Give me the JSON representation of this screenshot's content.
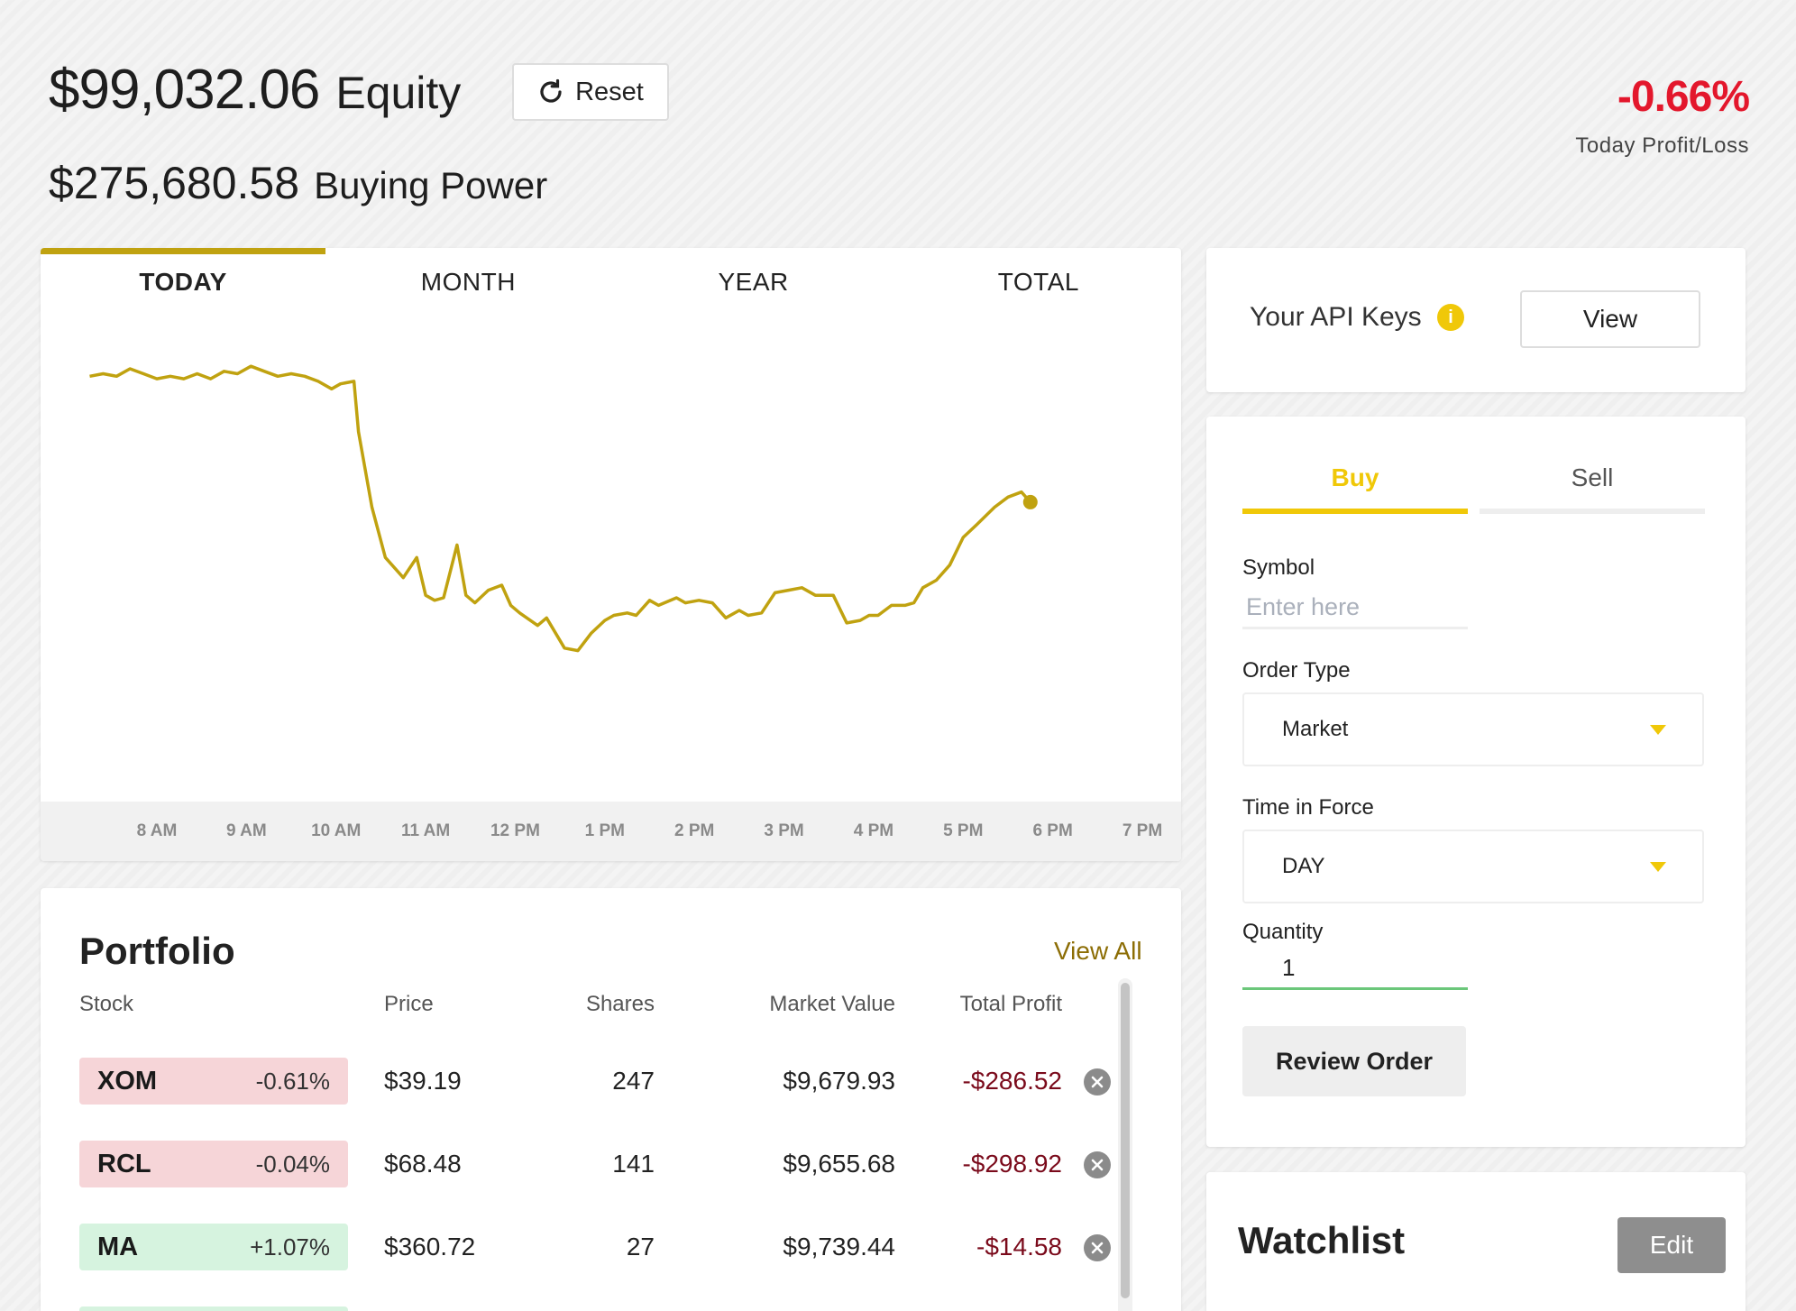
{
  "header": {
    "equity_amount": "$99,032.06",
    "equity_label": "Equity",
    "reset_label": "Reset",
    "buying_power_amount": "$275,680.58",
    "buying_power_label": "Buying Power",
    "today_pl_value": "-0.66%",
    "today_pl_label": "Today Profit/Loss"
  },
  "chart_tabs": [
    {
      "label": "TODAY",
      "active": true
    },
    {
      "label": "MONTH",
      "active": false
    },
    {
      "label": "YEAR",
      "active": false
    },
    {
      "label": "TOTAL",
      "active": false
    }
  ],
  "chart_data": {
    "type": "line",
    "x_ticks": [
      "8 AM",
      "9 AM",
      "10 AM",
      "11 AM",
      "12 PM",
      "1 PM",
      "2 PM",
      "3 PM",
      "4 PM",
      "5 PM",
      "6 PM",
      "7 PM"
    ],
    "x_range_hours": [
      7.6,
      19.2
    ],
    "line_color": "#c0a210",
    "series": [
      {
        "points": [
          [
            7.25,
            0.92
          ],
          [
            7.4,
            0.93
          ],
          [
            7.55,
            0.92
          ],
          [
            7.7,
            0.95
          ],
          [
            7.85,
            0.93
          ],
          [
            8.0,
            0.91
          ],
          [
            8.15,
            0.92
          ],
          [
            8.3,
            0.91
          ],
          [
            8.45,
            0.93
          ],
          [
            8.6,
            0.91
          ],
          [
            8.75,
            0.94
          ],
          [
            8.9,
            0.93
          ],
          [
            9.05,
            0.96
          ],
          [
            9.2,
            0.94
          ],
          [
            9.35,
            0.92
          ],
          [
            9.5,
            0.93
          ],
          [
            9.65,
            0.92
          ],
          [
            9.8,
            0.9
          ],
          [
            9.95,
            0.87
          ],
          [
            10.05,
            0.89
          ],
          [
            10.2,
            0.9
          ],
          [
            10.25,
            0.7
          ],
          [
            10.4,
            0.4
          ],
          [
            10.55,
            0.2
          ],
          [
            10.75,
            0.12
          ],
          [
            10.9,
            0.2
          ],
          [
            11.0,
            0.05
          ],
          [
            11.1,
            0.03
          ],
          [
            11.2,
            0.04
          ],
          [
            11.35,
            0.25
          ],
          [
            11.45,
            0.05
          ],
          [
            11.55,
            0.02
          ],
          [
            11.7,
            0.07
          ],
          [
            11.85,
            0.09
          ],
          [
            11.95,
            0.01
          ],
          [
            12.05,
            -0.02
          ],
          [
            12.25,
            -0.07
          ],
          [
            12.35,
            -0.04
          ],
          [
            12.55,
            -0.16
          ],
          [
            12.7,
            -0.17
          ],
          [
            12.85,
            -0.1
          ],
          [
            13.0,
            -0.05
          ],
          [
            13.1,
            -0.03
          ],
          [
            13.25,
            -0.02
          ],
          [
            13.35,
            -0.03
          ],
          [
            13.5,
            0.03
          ],
          [
            13.6,
            0.01
          ],
          [
            13.8,
            0.04
          ],
          [
            13.9,
            0.02
          ],
          [
            14.05,
            0.03
          ],
          [
            14.2,
            0.02
          ],
          [
            14.35,
            -0.04
          ],
          [
            14.5,
            -0.01
          ],
          [
            14.6,
            -0.03
          ],
          [
            14.75,
            -0.02
          ],
          [
            14.9,
            0.06
          ],
          [
            15.05,
            0.07
          ],
          [
            15.2,
            0.08
          ],
          [
            15.35,
            0.05
          ],
          [
            15.55,
            0.05
          ],
          [
            15.7,
            -0.06
          ],
          [
            15.85,
            -0.05
          ],
          [
            15.95,
            -0.03
          ],
          [
            16.05,
            -0.03
          ],
          [
            16.2,
            0.01
          ],
          [
            16.35,
            0.01
          ],
          [
            16.45,
            0.02
          ],
          [
            16.55,
            0.08
          ],
          [
            16.7,
            0.11
          ],
          [
            16.85,
            0.17
          ],
          [
            17.0,
            0.28
          ],
          [
            17.15,
            0.33
          ],
          [
            17.35,
            0.4
          ],
          [
            17.5,
            0.44
          ],
          [
            17.65,
            0.46
          ],
          [
            17.75,
            0.42
          ]
        ]
      }
    ]
  },
  "portfolio": {
    "title": "Portfolio",
    "view_all": "View All",
    "columns": [
      "Stock",
      "Price",
      "Shares",
      "Market Value",
      "Total Profit"
    ],
    "rows": [
      {
        "symbol": "XOM",
        "change": "-0.61%",
        "direction": "neg",
        "price": "$39.19",
        "shares": "247",
        "market_value": "$9,679.93",
        "total_profit": "-$286.52"
      },
      {
        "symbol": "RCL",
        "change": "-0.04%",
        "direction": "neg",
        "price": "$68.48",
        "shares": "141",
        "market_value": "$9,655.68",
        "total_profit": "-$298.92"
      },
      {
        "symbol": "MA",
        "change": "+1.07%",
        "direction": "pos",
        "price": "$360.72",
        "shares": "27",
        "market_value": "$9,739.44",
        "total_profit": "-$14.58"
      }
    ]
  },
  "api_keys": {
    "label": "Your API Keys",
    "info_icon": "info-icon",
    "info_glyph": "i",
    "view_label": "View"
  },
  "order": {
    "tabs": [
      "Buy",
      "Sell"
    ],
    "symbol_label": "Symbol",
    "symbol_placeholder": "Enter here",
    "order_type_label": "Order Type",
    "order_type_value": "Market",
    "time_in_force_label": "Time in Force",
    "time_in_force_value": "DAY",
    "quantity_label": "Quantity",
    "quantity_value": "1",
    "review_label": "Review Order"
  },
  "watchlist": {
    "title": "Watchlist",
    "edit_label": "Edit"
  },
  "colors": {
    "accent_gold": "#c0a210",
    "buy_yellow": "#f0c808",
    "loss_red": "#e3172c",
    "loss_dark": "#7a0a1b"
  }
}
